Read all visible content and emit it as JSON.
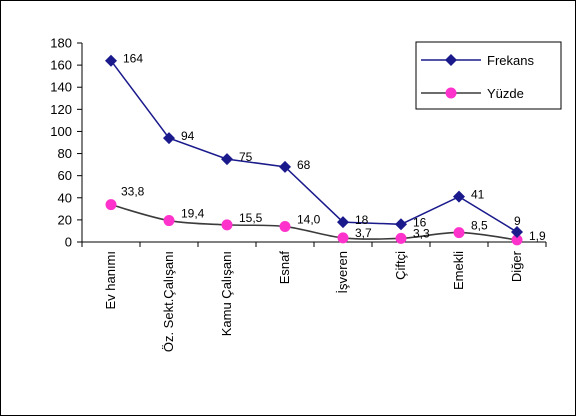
{
  "chart_data": {
    "type": "line",
    "categories": [
      "Ev hanımı",
      "Öz. Sekt.Çalışanı",
      "Kamu Çalışanı",
      "Esnaf",
      "İşveren",
      "Çiftçi",
      "Emekli",
      "Diğer"
    ],
    "series": [
      {
        "name": "Frekans",
        "values": [
          164,
          94,
          75,
          68,
          18,
          16,
          41,
          9
        ],
        "labels": [
          "164",
          "94",
          "75",
          "68",
          "18",
          "16",
          "41",
          "9"
        ],
        "color": "#1a1a8c",
        "marker": "diamond",
        "smooth": false
      },
      {
        "name": "Yüzde",
        "values": [
          33.8,
          19.4,
          15.5,
          14.0,
          3.7,
          3.3,
          8.5,
          1.9
        ],
        "labels": [
          "33,8",
          "19,4",
          "15,5",
          "14,0",
          "3,7",
          "3,3",
          "8,5",
          "1,9"
        ],
        "color": "#3b3b3b",
        "marker_color": "#ff33cc",
        "marker": "circle",
        "smooth": true
      }
    ],
    "yticks": [
      "0",
      "20",
      "40",
      "60",
      "80",
      "100",
      "120",
      "140",
      "160",
      "180"
    ],
    "ylim": [
      0,
      180
    ],
    "grid": false,
    "legend_position": "top-right"
  }
}
